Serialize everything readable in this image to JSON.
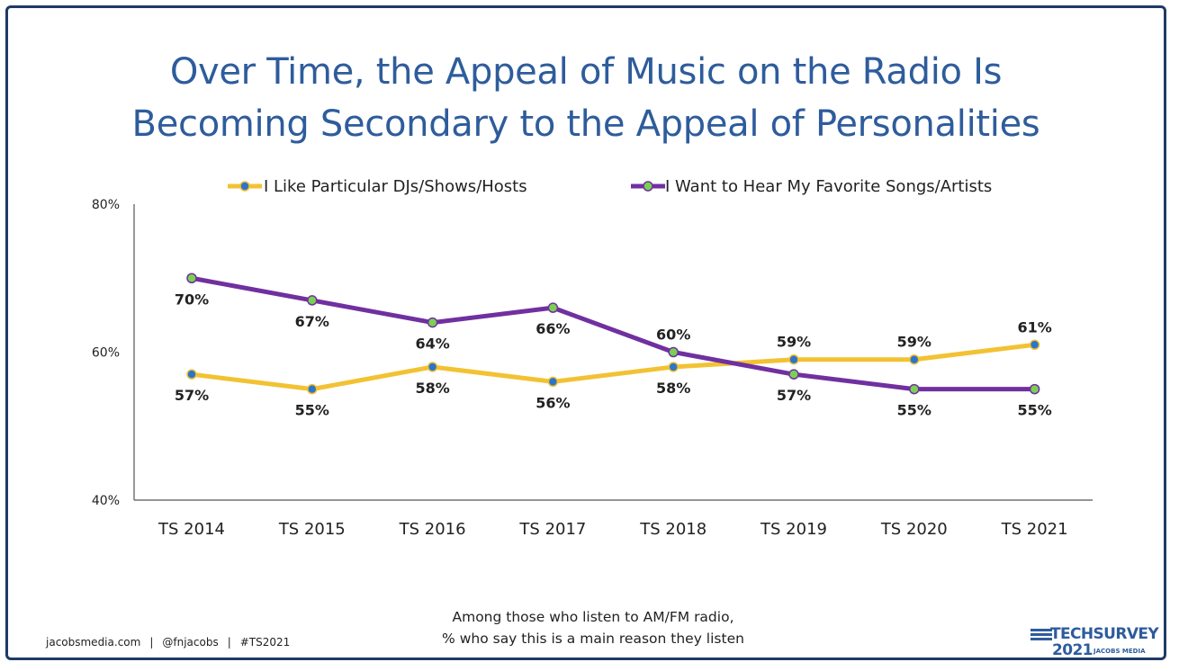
{
  "title_lines": [
    "Over Time, the Appeal of Music on the Radio Is",
    "Becoming Secondary to the Appeal of Personalities"
  ],
  "chart_data": {
    "type": "line",
    "categories": [
      "TS 2014",
      "TS 2015",
      "TS 2016",
      "TS 2017",
      "TS 2018",
      "TS 2019",
      "TS 2020",
      "TS 2021"
    ],
    "series": [
      {
        "name": "I Like Particular DJs/Shows/Hosts",
        "values": [
          57,
          55,
          58,
          56,
          58,
          59,
          59,
          61
        ],
        "labels": [
          "57%",
          "55%",
          "58%",
          "56%",
          "58%",
          "59%",
          "59%",
          "61%"
        ],
        "line_color": "#f2c233",
        "marker_color": "#2e75c9"
      },
      {
        "name": "I Want to Hear My Favorite Songs/Artists",
        "values": [
          70,
          67,
          64,
          66,
          60,
          57,
          55,
          55
        ],
        "labels": [
          "70%",
          "67%",
          "64%",
          "66%",
          "60%",
          "57%",
          "55%",
          "55%"
        ],
        "line_color": "#7030a0",
        "marker_color": "#7ad151"
      }
    ],
    "ylim": [
      40,
      80
    ],
    "yticks": [
      "40%",
      "60%",
      "80%"
    ],
    "ytick_values": [
      40,
      60,
      80
    ],
    "legend_position": "top",
    "grid": false
  },
  "subtitle_lines": [
    "Among those who listen to AM/FM radio,",
    "% who say this is a main reason they listen"
  ],
  "footer": {
    "site": "jacobsmedia.com",
    "handle": "@fnjacobs",
    "hashtag": "#TS2021",
    "separator": "|"
  },
  "logo": {
    "line1": "TECHSURVEY",
    "line2": "2021",
    "line3": "JACOBS MEDIA"
  }
}
